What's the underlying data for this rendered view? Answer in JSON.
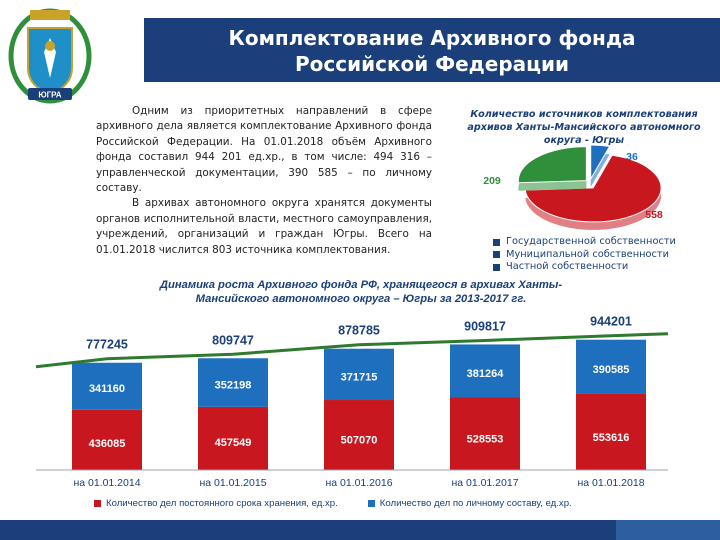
{
  "header": {
    "title_line1": "Комплектование Архивного фонда",
    "title_line2": "Российской Федерации"
  },
  "crest": {
    "label": "ЮГРА"
  },
  "intro": {
    "paragraph1": "Одним из приоритетных направлений в сфере архивного дела является комплектование Архивного фонда Российской Федерации. На 01.01.2018 объём Архивного фонда составил 944 201 ед.хр., в том числе: 494 316 – управленческой документации, 390 585 – по личному составу.",
    "paragraph2": "В архивах автономного округа хранятся документы органов исполнительной власти, местного самоуправления, учреждений, организаций и граждан Югры. Всего на 01.01.2018 числится 803 источника комплектования."
  },
  "colors": {
    "navy": "#1a3f7a",
    "red": "#c8171f",
    "blue": "#1f6fbf",
    "green": "#2f8f3a",
    "line": "#2f7a2f"
  },
  "chart_data": [
    {
      "type": "pie",
      "title": "Количество источников комплектования архивов Ханты-Мансийского автономного округа - Югры",
      "slices": [
        {
          "name": "Государственной собственности",
          "value": 36,
          "color": "#1f6fbf"
        },
        {
          "name": "Муниципальной собственности",
          "value": 558,
          "color": "#c8171f"
        },
        {
          "name": "Частной собственности",
          "value": 209,
          "color": "#2f8f3a"
        }
      ],
      "legend_position": "bottom"
    },
    {
      "type": "bar",
      "stacked": true,
      "title_line1": "Динамика роста Архивного фонда РФ, хранящегося в архивах Ханты-",
      "title_line2": "Мансийского автономного округа – Югры за 2013-2017 гг.",
      "categories": [
        "на 01.01.2014",
        "на 01.01.2015",
        "на 01.01.2016",
        "на 01.01.2017",
        "на 01.01.2018"
      ],
      "series": [
        {
          "name": "Количество дел постоянного срока хранения, ед.хр.",
          "color": "#c8171f",
          "values": [
            436085,
            457549,
            507070,
            528553,
            553616
          ]
        },
        {
          "name": "Количество дел по личному составу, ед.хр.",
          "color": "#1f6fbf",
          "values": [
            341160,
            352198,
            371715,
            381264,
            390585
          ]
        }
      ],
      "totals": [
        777245,
        809747,
        878785,
        909817,
        944201
      ],
      "legend_position": "bottom",
      "grid": false
    }
  ]
}
